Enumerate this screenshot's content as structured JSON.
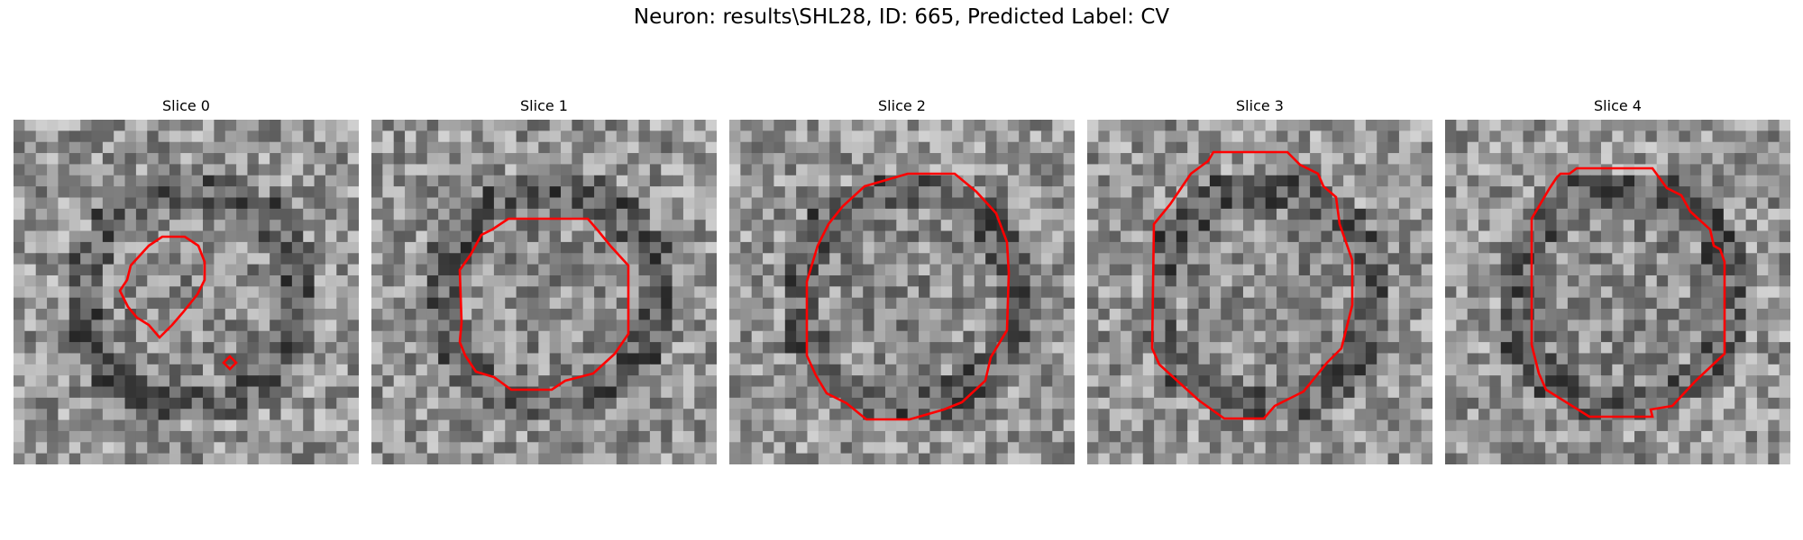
{
  "figure": {
    "title": "Neuron: results\\SHL28, ID: 665, Predicted Label: CV"
  },
  "panels": [
    {
      "title": "Slice 0"
    },
    {
      "title": "Slice 1"
    },
    {
      "title": "Slice 2"
    },
    {
      "title": "Slice 3"
    },
    {
      "title": "Slice 4"
    }
  ],
  "colors": {
    "contour": "#ff0000",
    "background": "#ffffff"
  }
}
